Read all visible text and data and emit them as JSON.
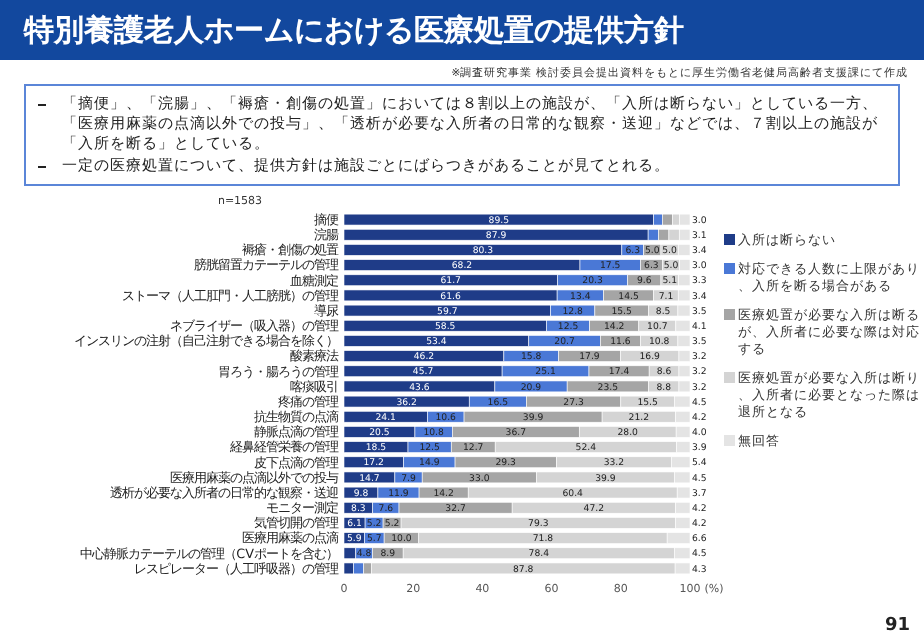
{
  "chart_data": {
    "type": "bar",
    "orientation": "horizontal",
    "stacked": true,
    "legend": "right",
    "title": "特別養護老人ホームにおける医療処置の提供方針",
    "subtitle": "※調査研究事業 検討委員会提出資料をもとに厚生労働省老健局高齢者支援課にて作成",
    "annotations": [
      "「摘便」、「浣腸」、「褥瘡・創傷の処置」においては８割以上の施設が、「入所は断らない」としている一方、「医療用麻薬の点滴以外での投与」、「透析が必要な入所者の日常的な観察・送迎」などでは、７割以上の施設が「入所を断る」としている。",
      "一定の医療処置について、提供方針は施設ごとにばらつきがあることが見てとれる。",
      "n=1583",
      "91"
    ],
    "xlabel": "(%)",
    "categories": [
      "摘便",
      "浣腸",
      "褥瘡・創傷の処置",
      "膀胱留置カテーテルの管理",
      "血糖測定",
      "ストーマ（人工肛門・人工膀胱）の管理",
      "導尿",
      "ネブライザー（吸入器）の管理",
      "インスリンの注射（自己注射できる場合を除く）",
      "酸素療法",
      "胃ろう・腸ろうの管理",
      "喀痰吸引",
      "疼痛の管理",
      "抗生物質の点滴",
      "静脈点滴の管理",
      "経鼻経管栄養の管理",
      "皮下点滴の管理",
      "医療用麻薬の点滴以外での投与",
      "透析が必要な入所者の日常的な観察・送迎",
      "モニター測定",
      "気管切開の管理",
      "医療用麻薬の点滴",
      "中心静脈カテーテルの管理（CVポートを含む）",
      "レスピレーター（人工呼吸器）の管理"
    ],
    "xlim": [
      0,
      100
    ],
    "xticks": [
      0,
      20,
      40,
      60,
      80,
      100
    ],
    "series": [
      {
        "name": "入所は断らない",
        "color": "#1f3c88",
        "values": [
          89.5,
          87.9,
          80.3,
          68.2,
          61.7,
          61.6,
          59.7,
          58.5,
          53.4,
          46.2,
          45.7,
          43.6,
          36.2,
          24.1,
          20.5,
          18.5,
          17.2,
          14.7,
          9.8,
          8.3,
          6.1,
          5.9,
          3.4,
          2.8
        ],
        "value_labels": [
          "89.5",
          "87.9",
          "80.3",
          "68.2",
          "61.7",
          "61.6",
          "59.7",
          "58.5",
          "53.4",
          "46.2",
          "45.7",
          "43.6",
          "36.2",
          "24.1",
          "20.5",
          "18.5",
          "17.2",
          "14.7",
          "9.8",
          "8.3",
          "6.1",
          "5.9",
          null,
          null
        ]
      },
      {
        "name": "対応できる人数に上限があり、入所を断る場合がある",
        "color": "#4a78d6",
        "values": [
          2.5,
          3.0,
          6.3,
          17.5,
          20.3,
          13.4,
          12.8,
          12.5,
          20.7,
          15.8,
          25.1,
          20.9,
          16.5,
          10.6,
          10.8,
          12.5,
          14.9,
          7.9,
          11.9,
          7.6,
          5.2,
          5.7,
          4.8,
          2.9
        ],
        "value_labels": [
          null,
          null,
          "6.3",
          "17.5",
          "20.3",
          "13.4",
          "12.8",
          "12.5",
          "20.7",
          "15.8",
          "25.1",
          "20.9",
          "16.5",
          "10.6",
          "10.8",
          "12.5",
          "14.9",
          "7.9",
          "11.9",
          "7.6",
          "5.2",
          "5.7",
          "4.8",
          null
        ]
      },
      {
        "name": "医療処置が必要な入所は断るが、入所者に必要な際は対応する",
        "color": "#a5a5a5",
        "values": [
          2.9,
          3.0,
          5.0,
          6.3,
          9.6,
          14.5,
          15.5,
          14.2,
          11.6,
          17.9,
          17.4,
          23.5,
          27.3,
          39.9,
          36.7,
          12.7,
          29.3,
          33.0,
          14.2,
          32.7,
          5.2,
          10.0,
          8.9,
          2.2
        ],
        "value_labels": [
          null,
          null,
          "5.0",
          "6.3",
          "9.6",
          "14.5",
          "15.5",
          "14.2",
          "11.6",
          "17.9",
          "17.4",
          "23.5",
          "27.3",
          "39.9",
          "36.7",
          "12.7",
          "29.3",
          "33.0",
          "14.2",
          "32.7",
          "5.2",
          "10.0",
          "8.9",
          null
        ]
      },
      {
        "name": "医療処置が必要な入所は断り、入所者に必要となった際は退所となる",
        "color": "#d4d4d4",
        "values": [
          2.1,
          3.0,
          5.0,
          5.0,
          5.1,
          7.1,
          8.5,
          10.7,
          10.8,
          16.9,
          8.6,
          8.8,
          15.5,
          21.2,
          28.0,
          52.4,
          33.2,
          39.9,
          60.4,
          47.2,
          79.3,
          71.8,
          78.4,
          87.8
        ],
        "value_labels": [
          null,
          null,
          "5.0",
          "5.0",
          "5.1",
          "7.1",
          "8.5",
          "10.7",
          "10.8",
          "16.9",
          "8.6",
          "8.8",
          "15.5",
          "21.2",
          "28.0",
          "52.4",
          "33.2",
          "39.9",
          "60.4",
          "47.2",
          "79.3",
          "71.8",
          "78.4",
          "87.8"
        ]
      },
      {
        "name": "無回答",
        "color": "#e4e4e4",
        "values": [
          3.0,
          3.1,
          3.4,
          3.0,
          3.3,
          3.4,
          3.5,
          4.1,
          3.5,
          3.2,
          3.2,
          3.2,
          4.5,
          4.2,
          4.0,
          3.9,
          5.4,
          4.5,
          3.7,
          4.2,
          4.2,
          6.6,
          4.5,
          4.3
        ],
        "value_labels": [
          "3.0",
          "3.1",
          "3.4",
          "3.0",
          "3.3",
          "3.4",
          "3.5",
          "4.1",
          "3.5",
          "3.2",
          "3.2",
          "3.2",
          "4.5",
          "4.2",
          "4.0",
          "3.9",
          "5.4",
          "4.5",
          "3.7",
          "4.2",
          "4.2",
          "6.6",
          "4.5",
          "4.3"
        ]
      }
    ]
  }
}
